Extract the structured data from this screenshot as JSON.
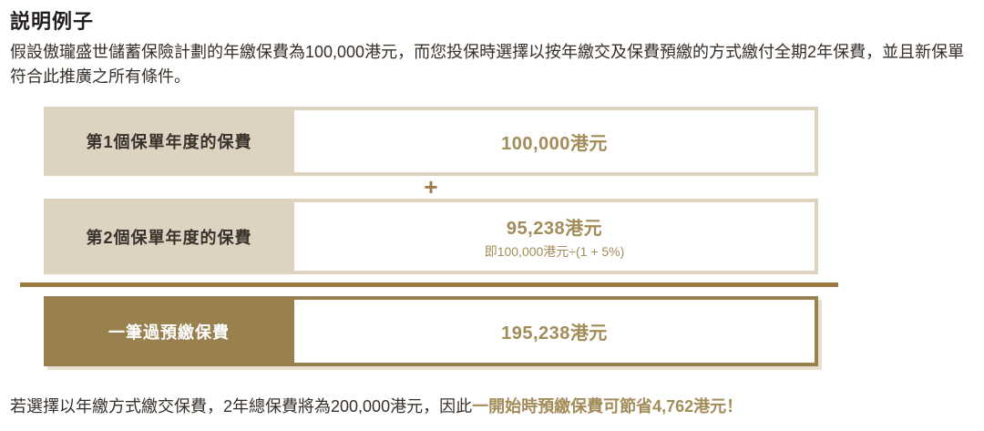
{
  "page": {
    "title": "説明例子",
    "intro": "假設傲瓏盛世儲蓄保險計劃的年繳保費為100,000港元，而您投保時選擇以按年繳交及保費預繳的方式繳付全期2年保費，並且新保單符合此推廣之所有條件。",
    "footer": {
      "normal": "若選擇以年繳方式繳交保費，2年總保費將為200,000港元，因此",
      "highlight": "一開始時預繳保費可節省4,762港元！"
    }
  },
  "diagram": {
    "operator_plus": "+",
    "rows": [
      {
        "label": "第1個保單年度的保費",
        "value": "100,000港元",
        "note": ""
      },
      {
        "label": "第2個保單年度的保費",
        "value": "95,238港元",
        "note": "即100,000港元÷(1 + 5%)"
      },
      {
        "label": "一筆過預繳保費",
        "value": "195,238港元",
        "note": ""
      }
    ],
    "colors": {
      "beige_row_bg": "#ddd3c0",
      "dark_gold_row_bg": "#99804f",
      "divider_gold": "#9b7b43",
      "gold_text": "#a28c59",
      "body_text": "#37302a"
    }
  }
}
